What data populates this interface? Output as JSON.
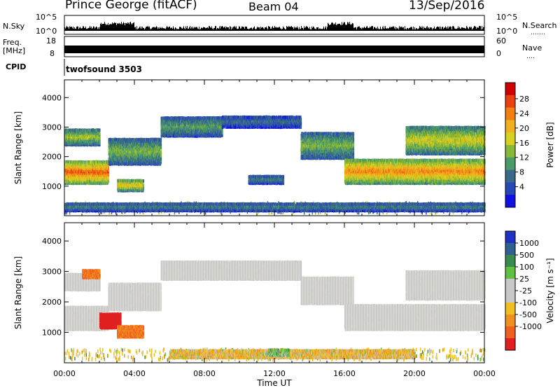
{
  "header": {
    "station": "Prince George (fitACF)",
    "beam": "Beam 04",
    "date": "13/Sep/2016"
  },
  "side_labels": {
    "nsky": "N.Sky",
    "freq_line1": "Freq.",
    "freq_line2": "[MHz]",
    "cpid": "CPID",
    "nsearch": "N.Search",
    "nave": "Nave",
    "dots6": "․․․․․․․",
    "dots4": "․․․․"
  },
  "top_strips": {
    "sky": {
      "left_ticks": [
        "10^5",
        "10^0"
      ],
      "right_ticks": [
        "10^5",
        "10^0"
      ]
    },
    "freq": {
      "left_ticks": [
        "18",
        "8"
      ],
      "right_ticks": [
        "60",
        "0"
      ]
    },
    "cpid_value": "twofsound 3503"
  },
  "chart_data": [
    {
      "type": "heatmap",
      "name": "power",
      "ylabel": "Slant Range [km]",
      "ylim": [
        0,
        4600
      ],
      "yticks": [
        "1000",
        "2000",
        "3000",
        "4000"
      ],
      "x": [
        "00:00",
        "04:00",
        "08:00",
        "12:00",
        "16:00",
        "20:00",
        "00:00"
      ],
      "colorbar": {
        "label": "Power [dB]",
        "ticks": [
          "28",
          "24",
          "20",
          "16",
          "12",
          "8",
          "4"
        ],
        "colors": [
          "#1010e0",
          "#2848b8",
          "#3a6a8a",
          "#4a9a6a",
          "#88b838",
          "#d8d020",
          "#f0b020",
          "#f08010",
          "#e84010",
          "#d00000"
        ]
      },
      "bands": [
        {
          "t0": 0.0,
          "t1": 2.5,
          "r0": 1050,
          "r1": 1800,
          "level": 26
        },
        {
          "t0": 0.0,
          "t1": 2.0,
          "r0": 2350,
          "r1": 2900,
          "level": 16
        },
        {
          "t0": 2.5,
          "t1": 5.5,
          "r0": 1700,
          "r1": 2600,
          "level": 14
        },
        {
          "t0": 3.0,
          "t1": 4.5,
          "r0": 800,
          "r1": 1200,
          "level": 20
        },
        {
          "t0": 5.5,
          "t1": 9.0,
          "r0": 2650,
          "r1": 3300,
          "level": 12
        },
        {
          "t0": 9.0,
          "t1": 13.5,
          "r0": 2950,
          "r1": 3350,
          "level": 8
        },
        {
          "t0": 10.5,
          "t1": 12.5,
          "r0": 1050,
          "r1": 1350,
          "level": 10
        },
        {
          "t0": 13.5,
          "t1": 16.5,
          "r0": 1900,
          "r1": 2800,
          "level": 14
        },
        {
          "t0": 16.0,
          "t1": 24.0,
          "r0": 1050,
          "r1": 1900,
          "level": 24
        },
        {
          "t0": 19.5,
          "t1": 24.0,
          "r0": 2050,
          "r1": 3000,
          "level": 18
        },
        {
          "t0": 0.0,
          "t1": 24.0,
          "r0": 120,
          "r1": 420,
          "level": 10
        }
      ]
    },
    {
      "type": "heatmap",
      "name": "velocity",
      "ylabel": "Slant Range [km]",
      "ylim": [
        0,
        4600
      ],
      "yticks": [
        "1000",
        "2000",
        "3000",
        "4000"
      ],
      "x": [
        "00:00",
        "04:00",
        "08:00",
        "12:00",
        "16:00",
        "20:00",
        "00:00"
      ],
      "xlabel": "Time UT",
      "colorbar": {
        "label": "Velocity [m s⁻¹]",
        "ticks": [
          "1000",
          "500",
          "100",
          "25",
          "-25",
          "-100",
          "-500",
          "-1000"
        ],
        "colors": [
          "#2030c0",
          "#2e6090",
          "#3a8a50",
          "#60c040",
          "#c8c8c8",
          "#c8c8c8",
          "#f0c020",
          "#f09020",
          "#f06020",
          "#e02020"
        ]
      },
      "bands": [
        {
          "t0": 0.0,
          "t1": 2.5,
          "r0": 1050,
          "r1": 1800,
          "level": 0
        },
        {
          "t0": 0.0,
          "t1": 2.0,
          "r0": 2350,
          "r1": 2900,
          "level": 0
        },
        {
          "t0": 1.0,
          "t1": 2.0,
          "r0": 2750,
          "r1": 3000,
          "level": -300
        },
        {
          "t0": 2.0,
          "t1": 3.2,
          "r0": 1100,
          "r1": 1600,
          "level": -800
        },
        {
          "t0": 3.0,
          "t1": 4.5,
          "r0": 800,
          "r1": 1200,
          "level": -300
        },
        {
          "t0": 2.5,
          "t1": 5.5,
          "r0": 1700,
          "r1": 2600,
          "level": 0
        },
        {
          "t0": 5.5,
          "t1": 13.5,
          "r0": 2700,
          "r1": 3300,
          "level": 0
        },
        {
          "t0": 13.5,
          "t1": 16.5,
          "r0": 1900,
          "r1": 2800,
          "level": 0
        },
        {
          "t0": 16.0,
          "t1": 24.0,
          "r0": 1050,
          "r1": 1900,
          "level": 0
        },
        {
          "t0": 19.5,
          "t1": 24.0,
          "r0": 2050,
          "r1": 3000,
          "level": 0
        },
        {
          "t0": 6.0,
          "t1": 20.0,
          "r0": 120,
          "r1": 420,
          "level": -60
        },
        {
          "t0": 11.5,
          "t1": 12.8,
          "r0": 200,
          "r1": 400,
          "level": 60
        }
      ]
    }
  ]
}
